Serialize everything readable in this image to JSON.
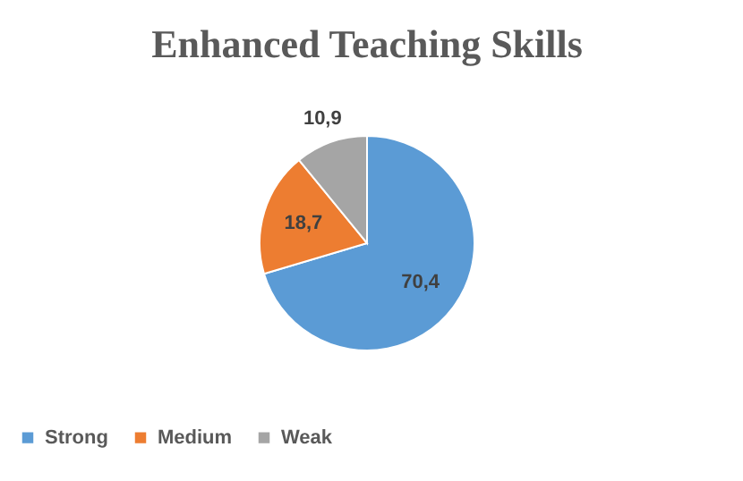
{
  "chart_data": {
    "type": "pie",
    "title": "Enhanced Teaching Skills",
    "categories": [
      "Strong",
      "Medium",
      "Weak"
    ],
    "values": [
      70.4,
      18.7,
      10.9
    ],
    "colors": [
      "#5b9bd5",
      "#ed7d31",
      "#a5a5a5"
    ],
    "value_labels": [
      "70,4",
      "18,7",
      "10,9"
    ],
    "legend": "bottom"
  }
}
